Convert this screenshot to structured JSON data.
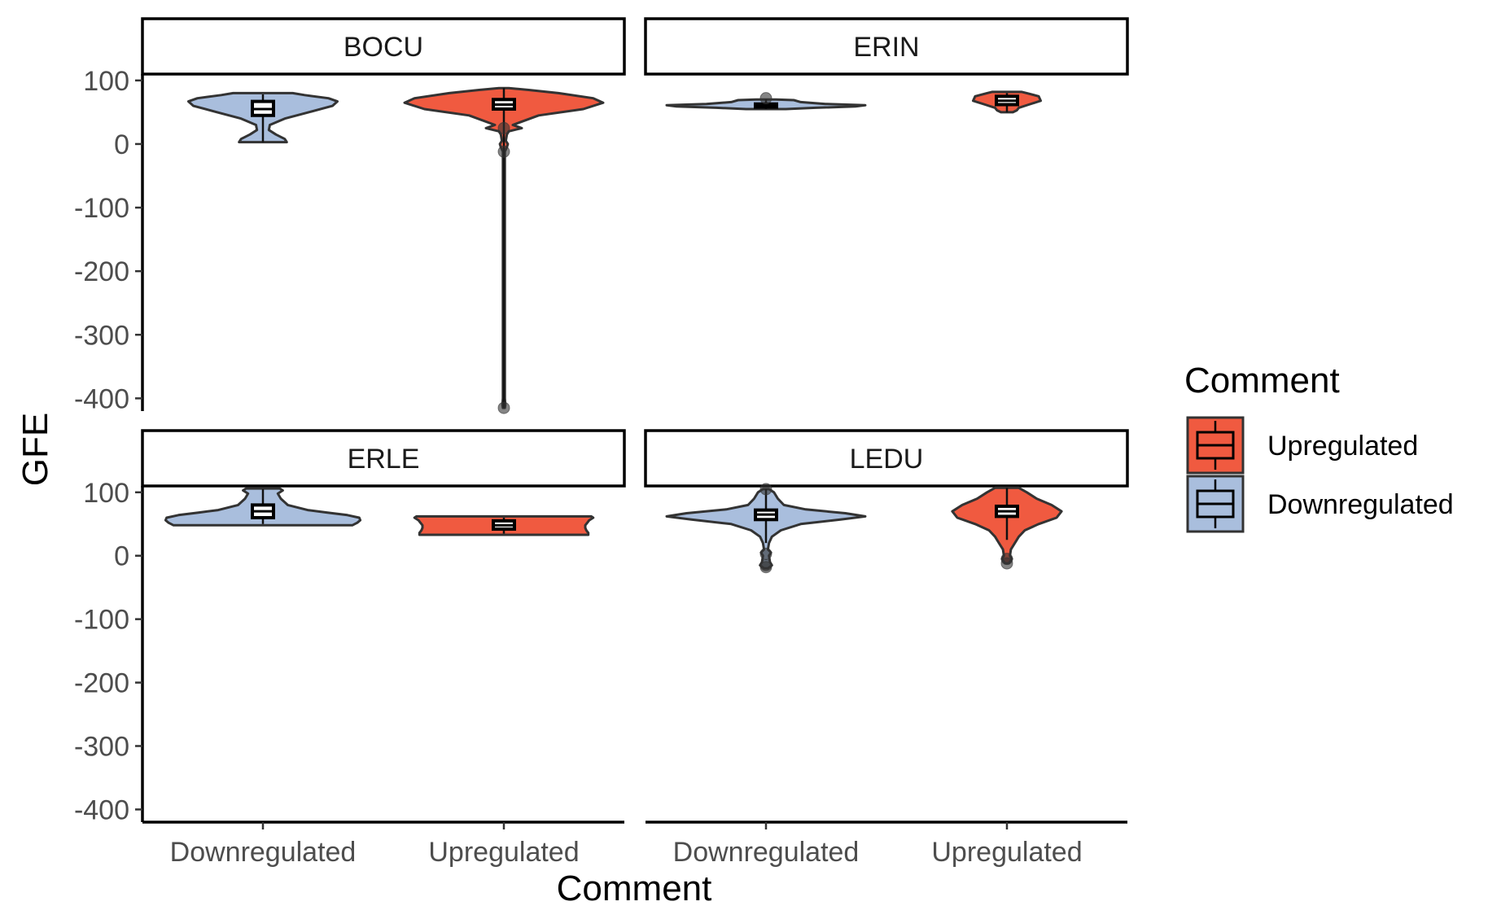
{
  "chart_data": {
    "type": "violin",
    "xlabel": "Comment",
    "ylabel": "GFE",
    "ylim": [
      -420,
      110
    ],
    "yticks": [
      100,
      0,
      -100,
      -200,
      -300,
      -400
    ],
    "categories": [
      "Downregulated",
      "Upregulated"
    ],
    "legend": {
      "title": "Comment",
      "position": "right",
      "items": [
        {
          "label": "Upregulated",
          "color": "#F05A40"
        },
        {
          "label": "Downregulated",
          "color": "#A9BEDD"
        }
      ]
    },
    "colors": {
      "Downregulated": "#A9BEDD",
      "Upregulated": "#F05A40"
    },
    "facets": [
      {
        "name": "BOCU",
        "groups": [
          {
            "category": "Downregulated",
            "min": 3,
            "q1": 45,
            "median": 55,
            "q3": 67,
            "max": 78,
            "outliers": [],
            "density": [
              [
                3,
                0.24
              ],
              [
                8,
                0.22
              ],
              [
                15,
                0.13
              ],
              [
                22,
                0.06
              ],
              [
                30,
                0.07
              ],
              [
                40,
                0.22
              ],
              [
                50,
                0.46
              ],
              [
                60,
                0.7
              ],
              [
                67,
                0.75
              ],
              [
                72,
                0.66
              ],
              [
                77,
                0.42
              ],
              [
                80,
                0.3
              ]
            ]
          },
          {
            "category": "Upregulated",
            "min": -415,
            "q1": 55,
            "median": 62,
            "q3": 70,
            "max": 88,
            "outliers": [
              25,
              -12,
              -415
            ],
            "density": [
              [
                -415,
                0.01
              ],
              [
                -410,
                0.015
              ],
              [
                -400,
                0.01
              ],
              [
                -12,
                0.01
              ],
              [
                -5,
                0.03
              ],
              [
                0,
                0.04
              ],
              [
                5,
                0.02
              ],
              [
                15,
                0.03
              ],
              [
                20,
                0.05
              ],
              [
                25,
                0.18
              ],
              [
                30,
                0.09
              ],
              [
                45,
                0.35
              ],
              [
                55,
                0.8
              ],
              [
                65,
                1.0
              ],
              [
                72,
                0.9
              ],
              [
                80,
                0.55
              ],
              [
                85,
                0.25
              ],
              [
                88,
                0.05
              ]
            ]
          }
        ]
      },
      {
        "name": "ERIN",
        "groups": [
          {
            "category": "Downregulated",
            "min": 55,
            "q1": 58,
            "median": 60,
            "q3": 63,
            "max": 70,
            "outliers": [
              72
            ],
            "density": [
              [
                55,
                0.2
              ],
              [
                57,
                0.5
              ],
              [
                59,
                0.9
              ],
              [
                61,
                1.0
              ],
              [
                63,
                0.6
              ],
              [
                66,
                0.35
              ],
              [
                69,
                0.28
              ],
              [
                70,
                0.1
              ]
            ]
          },
          {
            "category": "Upregulated",
            "min": 50,
            "q1": 62,
            "median": 68,
            "q3": 75,
            "max": 80,
            "outliers": [],
            "density": [
              [
                50,
                0.06
              ],
              [
                53,
                0.1
              ],
              [
                57,
                0.12
              ],
              [
                62,
                0.22
              ],
              [
                68,
                0.34
              ],
              [
                75,
                0.32
              ],
              [
                80,
                0.2
              ],
              [
                82,
                0.15
              ]
            ]
          }
        ]
      },
      {
        "name": "ERLE",
        "groups": [
          {
            "category": "Downregulated",
            "min": 50,
            "q1": 60,
            "median": 70,
            "q3": 80,
            "max": 105,
            "outliers": [],
            "density": [
              [
                48,
                0.9
              ],
              [
                52,
                0.95
              ],
              [
                56,
                0.98
              ],
              [
                60,
                0.97
              ],
              [
                64,
                0.85
              ],
              [
                68,
                0.65
              ],
              [
                72,
                0.45
              ],
              [
                80,
                0.25
              ],
              [
                90,
                0.18
              ],
              [
                98,
                0.15
              ],
              [
                103,
                0.2
              ],
              [
                106,
                0.17
              ]
            ]
          },
          {
            "category": "Upregulated",
            "min": 35,
            "q1": 42,
            "median": 48,
            "q3": 55,
            "max": 60,
            "outliers": [],
            "density": [
              [
                33,
                0.85
              ],
              [
                36,
                0.85
              ],
              [
                40,
                0.83
              ],
              [
                44,
                0.82
              ],
              [
                48,
                0.82
              ],
              [
                52,
                0.84
              ],
              [
                56,
                0.86
              ],
              [
                60,
                0.9
              ],
              [
                62,
                0.88
              ]
            ]
          }
        ]
      },
      {
        "name": "LEDU",
        "groups": [
          {
            "category": "Downregulated",
            "min": 20,
            "q1": 57,
            "median": 65,
            "q3": 72,
            "max": 105,
            "outliers": [
              105,
              3,
              -15,
              -18
            ],
            "density": [
              [
                -20,
                0.02
              ],
              [
                -15,
                0.06
              ],
              [
                -10,
                0.04
              ],
              [
                0,
                0.03
              ],
              [
                5,
                0.05
              ],
              [
                10,
                0.02
              ],
              [
                20,
                0.03
              ],
              [
                30,
                0.06
              ],
              [
                40,
                0.15
              ],
              [
                50,
                0.35
              ],
              [
                57,
                0.75
              ],
              [
                62,
                1.0
              ],
              [
                67,
                0.8
              ],
              [
                73,
                0.4
              ],
              [
                80,
                0.18
              ],
              [
                90,
                0.12
              ],
              [
                100,
                0.08
              ],
              [
                105,
                0.03
              ]
            ]
          },
          {
            "category": "Upregulated",
            "min": 25,
            "q1": 62,
            "median": 70,
            "q3": 78,
            "max": 107,
            "outliers": [
              -5,
              -12
            ],
            "density": [
              [
                -12,
                0.02
              ],
              [
                -5,
                0.05
              ],
              [
                0,
                0.03
              ],
              [
                10,
                0.04
              ],
              [
                20,
                0.08
              ],
              [
                30,
                0.12
              ],
              [
                40,
                0.18
              ],
              [
                50,
                0.32
              ],
              [
                60,
                0.5
              ],
              [
                70,
                0.55
              ],
              [
                80,
                0.45
              ],
              [
                90,
                0.3
              ],
              [
                100,
                0.2
              ],
              [
                107,
                0.12
              ]
            ]
          }
        ]
      }
    ]
  }
}
